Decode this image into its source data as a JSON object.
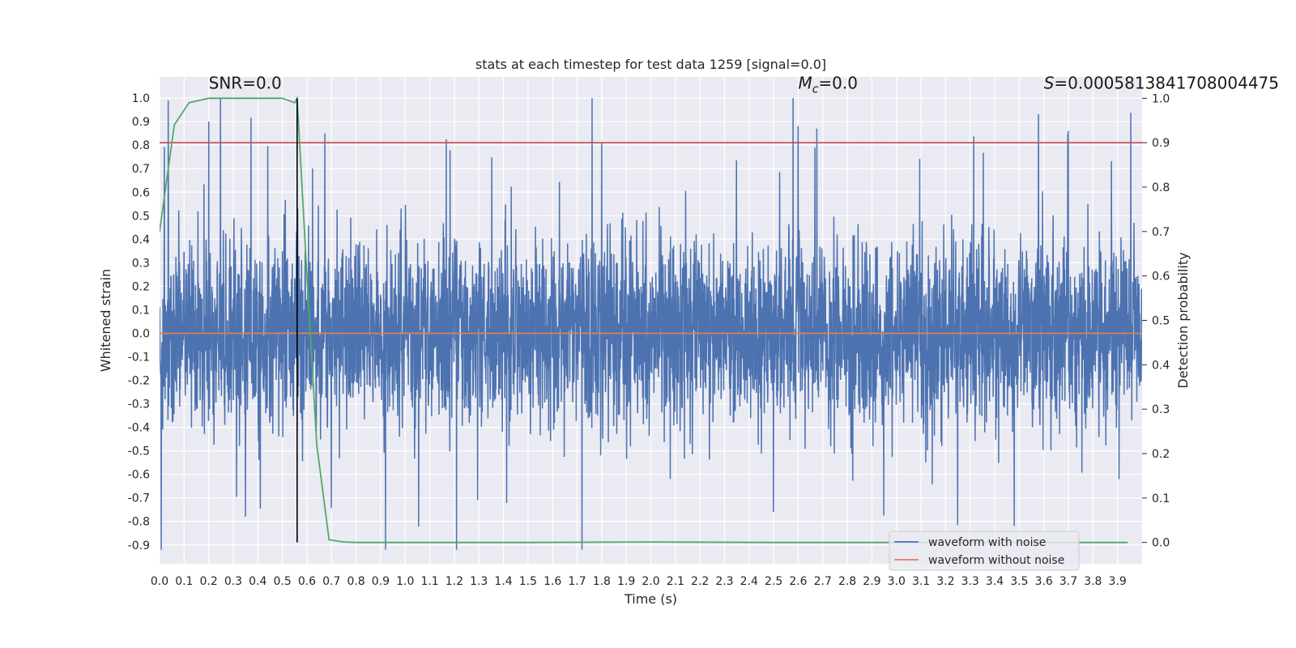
{
  "chart_data": {
    "type": "line",
    "title": "stats at each timestep for test data 1259 [signal=0.0]",
    "xlabel": "Time (s)",
    "ylabel": "Whitened strain",
    "y2label": "Detection probability",
    "xlim": [
      0.0,
      4.0
    ],
    "ylim": [
      -0.98,
      1.09
    ],
    "y2lim": [
      -0.048,
      1.048
    ],
    "x_ticks": [
      "0.0",
      "0.1",
      "0.2",
      "0.3",
      "0.4",
      "0.5",
      "0.6",
      "0.7",
      "0.8",
      "0.9",
      "1.0",
      "1.1",
      "1.2",
      "1.3",
      "1.4",
      "1.5",
      "1.6",
      "1.7",
      "1.8",
      "1.9",
      "2.0",
      "2.1",
      "2.2",
      "2.3",
      "2.4",
      "2.5",
      "2.6",
      "2.7",
      "2.8",
      "2.9",
      "3.0",
      "3.1",
      "3.2",
      "3.3",
      "3.4",
      "3.5",
      "3.6",
      "3.7",
      "3.8",
      "3.9"
    ],
    "y_ticks": [
      "1.0",
      "0.9",
      "0.8",
      "0.7",
      "0.6",
      "0.5",
      "0.4",
      "0.3",
      "0.2",
      "0.1",
      "0.0",
      "-0.1",
      "-0.2",
      "-0.3",
      "-0.4",
      "-0.5",
      "-0.6",
      "-0.7",
      "-0.8",
      "-0.9"
    ],
    "y2_ticks": [
      "1.0",
      "0.9",
      "0.8",
      "0.7",
      "0.6",
      "0.5",
      "0.4",
      "0.3",
      "0.2",
      "0.1",
      "0.0"
    ],
    "annotations": {
      "snr": "SNR=0.0",
      "mc_symbol": "M",
      "mc_sub": "c",
      "mc_value": "=0.0",
      "s_symbol": "S",
      "s_value": "=0.0005813841708004475"
    },
    "noisy_waveform": {
      "name": "waveform with noise",
      "color": "#4c72b0",
      "samples": 4096,
      "amplitude_range": [
        -0.92,
        1.0
      ],
      "notable_peaks": [
        [
          0.035,
          0.99
        ],
        [
          0.2,
          0.9
        ],
        [
          1.8,
          0.81
        ],
        [
          2.58,
          1.0
        ],
        [
          2.6,
          0.88
        ],
        [
          3.7,
          0.86
        ]
      ],
      "notable_troughs": [
        [
          0.92,
          -0.92
        ],
        [
          3.48,
          -0.82
        ],
        [
          2.5,
          -0.76
        ],
        [
          0.35,
          -0.78
        ]
      ]
    },
    "clean_waveform": {
      "name": "waveform without noise",
      "color": "#dd8452",
      "value": 0.0
    },
    "detection_probability": {
      "name": "detection probability",
      "color": "#55a868",
      "x": [
        0.0,
        0.06,
        0.12,
        0.2,
        0.3,
        0.4,
        0.5,
        0.55,
        0.56,
        0.6,
        0.64,
        0.69,
        0.75,
        0.8,
        1.0,
        1.5,
        2.0,
        2.5,
        3.0,
        3.5,
        3.94
      ],
      "values": [
        0.7,
        0.94,
        0.99,
        1.0,
        1.0,
        1.0,
        1.0,
        0.99,
        1.0,
        0.6,
        0.22,
        0.006,
        0.001,
        0.0,
        0.0,
        0.0,
        0.001,
        0.0,
        0.0,
        0.0,
        0.0
      ]
    },
    "threshold": {
      "value": 0.9,
      "axis": "right",
      "color": "#c44e52"
    },
    "marker_time": {
      "value": 0.56,
      "color": "#000000"
    },
    "legend": {
      "position": "lower right",
      "entries": [
        "waveform with noise",
        "waveform without noise"
      ]
    }
  }
}
